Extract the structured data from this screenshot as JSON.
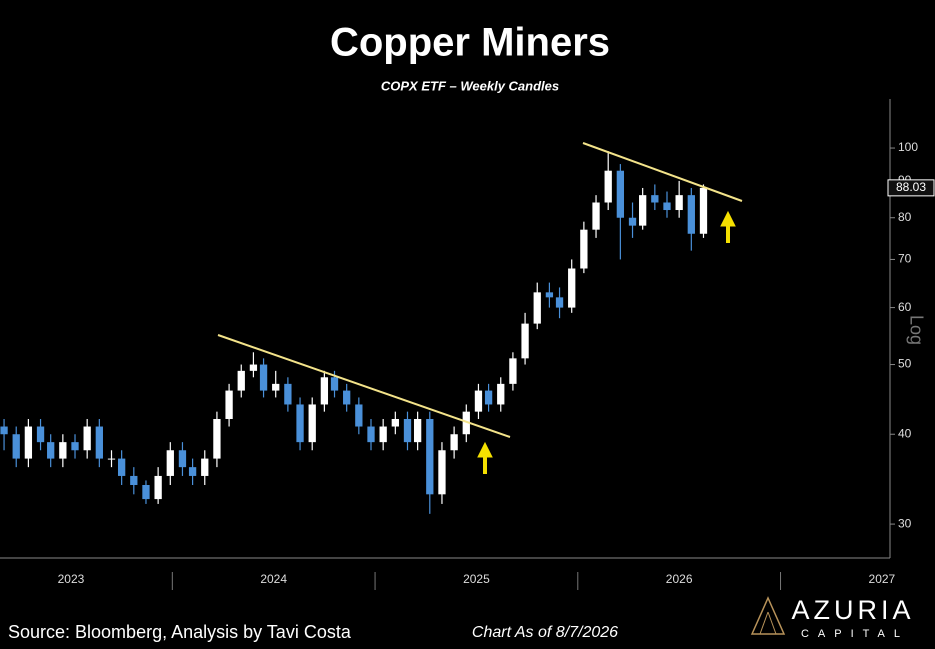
{
  "chart_data": {
    "type": "candlestick",
    "title": "Copper Miners",
    "subtitle": "COPX ETF – Weekly Candles",
    "y_label": "Log",
    "log_scale": true,
    "up_color": "#ffffff",
    "down_color": "#4a90d9",
    "x": [
      2023.17,
      2023.23,
      2023.29,
      2023.35,
      2023.4,
      2023.46,
      2023.52,
      2023.58,
      2023.64,
      2023.7,
      2023.75,
      2023.81,
      2023.87,
      2023.93,
      2023.99,
      2024.05,
      2024.1,
      2024.16,
      2024.22,
      2024.28,
      2024.34,
      2024.4,
      2024.45,
      2024.51,
      2024.57,
      2024.63,
      2024.69,
      2024.75,
      2024.8,
      2024.86,
      2024.92,
      2024.98,
      2025.04,
      2025.1,
      2025.16,
      2025.21,
      2025.27,
      2025.33,
      2025.39,
      2025.45,
      2025.51,
      2025.56,
      2025.62,
      2025.68,
      2025.74,
      2025.8,
      2025.86,
      2025.91,
      2025.97,
      2026.03,
      2026.09,
      2026.15,
      2026.21,
      2026.27,
      2026.32,
      2026.38,
      2026.44,
      2026.5,
      2026.56,
      2026.62
    ],
    "open": [
      41,
      40,
      37,
      41,
      39,
      37,
      39,
      38,
      41,
      37,
      37,
      35,
      34,
      32.5,
      35,
      38,
      36,
      35,
      37,
      42,
      46,
      49,
      50,
      46,
      47,
      44,
      39,
      44,
      48,
      46,
      44,
      41,
      39,
      41,
      42,
      39,
      42,
      33,
      38,
      40,
      43,
      46,
      44,
      47,
      51,
      57,
      63,
      62,
      60,
      68,
      77,
      84,
      93,
      80,
      78,
      86,
      84,
      82,
      86,
      76
    ],
    "high": [
      42,
      41,
      42,
      42,
      40,
      40,
      40,
      42,
      42,
      38,
      38,
      36,
      34.5,
      36,
      39,
      39,
      37,
      38,
      43,
      47,
      50,
      52,
      51,
      49,
      48,
      45,
      45,
      49,
      49,
      47,
      45,
      42,
      42,
      43,
      43,
      43,
      43,
      39,
      41,
      44,
      47,
      47,
      48,
      52,
      59,
      65,
      65,
      64,
      70,
      79,
      86,
      99,
      95,
      84,
      88,
      89,
      87,
      90,
      88,
      89
    ],
    "low": [
      38,
      36,
      36,
      38,
      36,
      36,
      37,
      37,
      36,
      36,
      34,
      33,
      32,
      32,
      34,
      35,
      34,
      34,
      36,
      41,
      45,
      48,
      45,
      45,
      43,
      38,
      38,
      43,
      45,
      43,
      40,
      38,
      38,
      40,
      38,
      38,
      31,
      32,
      37,
      39,
      42,
      43,
      43,
      46,
      50,
      56,
      60,
      58,
      59,
      67,
      75,
      82,
      70,
      75,
      77,
      82,
      80,
      80,
      72,
      75
    ],
    "close": [
      40,
      37,
      41,
      39,
      37,
      39,
      38,
      41,
      37,
      37,
      35,
      34,
      32.5,
      35,
      38,
      36,
      35,
      37,
      42,
      46,
      49,
      50,
      46,
      47,
      44,
      39,
      44,
      48,
      46,
      44,
      41,
      39,
      41,
      42,
      39,
      42,
      33,
      38,
      40,
      43,
      46,
      44,
      47,
      51,
      57,
      63,
      62,
      60,
      68,
      77,
      84,
      93,
      80,
      78,
      86,
      84,
      82,
      86,
      76,
      88.03
    ],
    "xlim": [
      2023.15,
      2027.54
    ],
    "xticks": [
      {
        "value": 2023.5,
        "label": "2023"
      },
      {
        "value": 2024.5,
        "label": "2024"
      },
      {
        "value": 2025.5,
        "label": "2025"
      },
      {
        "value": 2026.5,
        "label": "2026"
      },
      {
        "value": 2027.5,
        "label": "2027"
      }
    ],
    "ylim": [
      27,
      117
    ],
    "yticks": [
      30,
      40,
      50,
      60,
      70,
      80,
      90,
      100
    ],
    "source": "Source: Bloomberg, Analysis by Tavi Costa",
    "note": "Chart As of 8/7/2026",
    "logo": {
      "name": "AZURIA",
      "tagline": "CAPITAL"
    }
  }
}
